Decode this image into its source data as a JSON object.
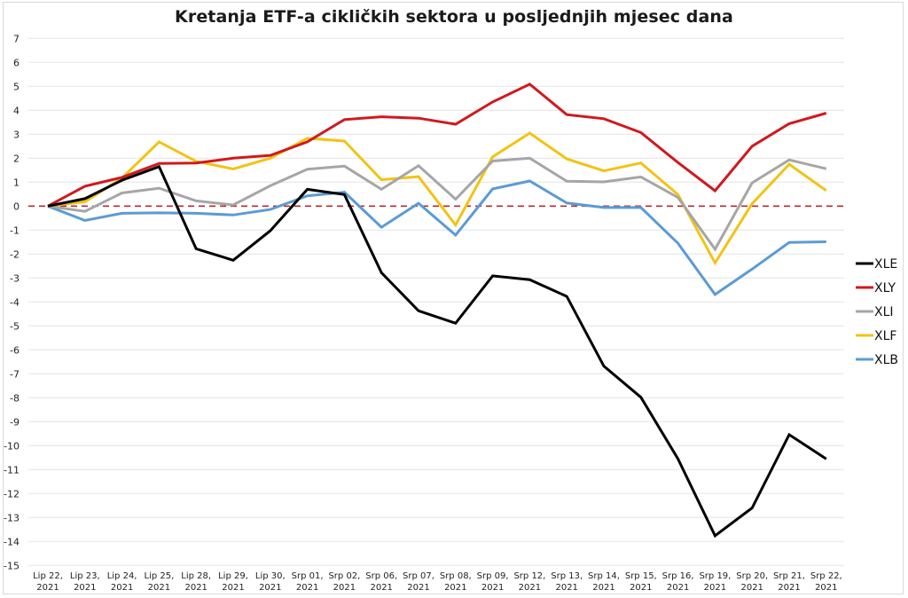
{
  "title": "Kretanja ETF-a cikličkih sektora u posljednjih mjesec dana",
  "chart_data": {
    "type": "line",
    "title": "Kretanja ETF-a cikličkih sektora u posljednjih mjesec dana",
    "xlabel": "",
    "ylabel": "",
    "ylim": [
      -15,
      7
    ],
    "yticks": [
      7,
      6,
      5,
      4,
      3,
      2,
      1,
      0,
      -1,
      -2,
      -3,
      -4,
      -5,
      -6,
      -7,
      -8,
      -9,
      -10,
      -11,
      -12,
      -13,
      -14,
      -15
    ],
    "grid": true,
    "legend_position": "right",
    "reference_line": {
      "y": 0,
      "style": "dashed",
      "color": "#c0272d"
    },
    "categories": [
      [
        "Lip 22,",
        "2021"
      ],
      [
        "Lip 23,",
        "2021"
      ],
      [
        "Lip 24,",
        "2021"
      ],
      [
        "Lip 25,",
        "2021"
      ],
      [
        "Lip 28,",
        "2021"
      ],
      [
        "Lip 29,",
        "2021"
      ],
      [
        "Lip 30,",
        "2021"
      ],
      [
        "Srp 01,",
        "2021"
      ],
      [
        "Srp 02,",
        "2021"
      ],
      [
        "Srp 06,",
        "2021"
      ],
      [
        "Srp 07,",
        "2021"
      ],
      [
        "Srp 08,",
        "2021"
      ],
      [
        "Srp 09,",
        "2021"
      ],
      [
        "Srp 12,",
        "2021"
      ],
      [
        "Srp 13,",
        "2021"
      ],
      [
        "Srp 14,",
        "2021"
      ],
      [
        "Srp 15,",
        "2021"
      ],
      [
        "Srp 16,",
        "2021"
      ],
      [
        "Srp 19,",
        "2021"
      ],
      [
        "Srp 20,",
        "2021"
      ],
      [
        "Srp 21,",
        "2021"
      ],
      [
        "Srp 22,",
        "2021"
      ]
    ],
    "series": [
      {
        "name": "XLE",
        "color": "#000000",
        "values": [
          0,
          0.31,
          1.08,
          1.65,
          -1.78,
          -2.26,
          -1.03,
          0.7,
          0.48,
          -2.78,
          -4.37,
          -4.89,
          -2.91,
          -3.07,
          -3.77,
          -6.68,
          -7.98,
          -10.55,
          -13.76,
          -12.6,
          -9.54,
          -10.55
        ]
      },
      {
        "name": "XLY",
        "color": "#d0191e",
        "values": [
          0,
          0.83,
          1.2,
          1.78,
          1.8,
          2.0,
          2.12,
          2.68,
          3.61,
          3.73,
          3.67,
          3.42,
          4.35,
          5.09,
          3.82,
          3.65,
          3.07,
          1.82,
          0.64,
          2.5,
          3.44,
          3.88
        ]
      },
      {
        "name": "XLI",
        "color": "#a6a6a6",
        "values": [
          0,
          -0.22,
          0.55,
          0.75,
          0.22,
          0.05,
          0.85,
          1.54,
          1.67,
          0.7,
          1.69,
          0.29,
          1.88,
          2.0,
          1.04,
          1.01,
          1.22,
          0.36,
          -1.8,
          0.97,
          1.93,
          1.56
        ]
      },
      {
        "name": "XLF",
        "color": "#f2c314",
        "values": [
          0,
          0.18,
          1.17,
          2.68,
          1.87,
          1.55,
          2.0,
          2.83,
          2.72,
          1.1,
          1.23,
          -0.79,
          2.06,
          3.05,
          1.97,
          1.47,
          1.8,
          0.48,
          -2.37,
          0.1,
          1.75,
          0.65
        ]
      },
      {
        "name": "XLB",
        "color": "#5b9bd5",
        "values": [
          0,
          -0.6,
          -0.3,
          -0.28,
          -0.3,
          -0.37,
          -0.14,
          0.43,
          0.58,
          -0.88,
          0.12,
          -1.21,
          0.72,
          1.05,
          0.13,
          -0.06,
          -0.06,
          -1.55,
          -3.69,
          -2.63,
          -1.52,
          -1.49
        ]
      }
    ]
  },
  "colors": {
    "grid": "#e3e3e3",
    "frame": "#d9d9d9",
    "zero_line": "#c0272d"
  }
}
